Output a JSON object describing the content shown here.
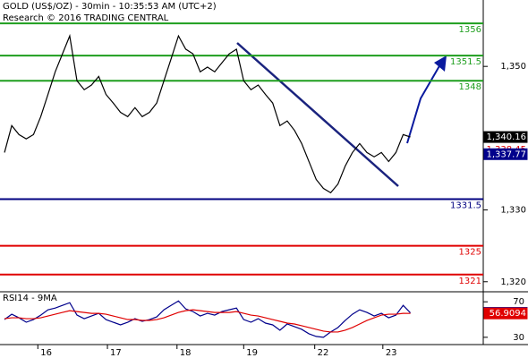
{
  "chart_data": [
    {
      "type": "line",
      "title": "GOLD (US$/OZ) - 30min - 10:35:53 AM (UTC+2)",
      "subtitle": "Research © 2016 TRADING CENTRAL",
      "x": [
        0,
        1,
        2,
        3,
        4,
        5,
        6,
        7,
        8,
        9,
        10,
        11,
        12,
        13,
        14,
        15,
        16,
        17,
        18,
        19,
        20,
        21,
        22,
        23,
        24,
        25,
        26,
        27,
        28,
        29,
        30,
        31,
        32,
        33,
        34,
        35,
        36,
        37,
        38,
        39,
        40,
        41,
        42,
        43,
        44,
        45,
        46,
        47,
        48,
        49,
        50,
        51,
        52,
        53,
        54,
        55,
        56
      ],
      "series": [
        {
          "color": "#000000",
          "values": [
            1338.0,
            1341.75,
            1340.5,
            1339.9,
            1340.5,
            1343.0,
            1346.1,
            1349.25,
            1351.75,
            1354.25,
            1348.0,
            1346.75,
            1347.4,
            1348.6,
            1346.1,
            1344.9,
            1343.6,
            1343.0,
            1344.25,
            1343.0,
            1343.6,
            1344.9,
            1348.0,
            1351.1,
            1354.25,
            1352.4,
            1351.75,
            1349.25,
            1349.9,
            1349.25,
            1350.5,
            1351.75,
            1352.4,
            1348.0,
            1346.75,
            1347.4,
            1346.1,
            1344.9,
            1341.75,
            1342.4,
            1341.1,
            1339.25,
            1336.75,
            1334.25,
            1333.0,
            1332.4,
            1333.6,
            1336.1,
            1338.0,
            1339.25,
            1338.0,
            1337.4,
            1338.0,
            1336.75,
            1338.0,
            1340.5,
            1340.16
          ]
        }
      ],
      "xlim": [
        -0.62,
        66.05
      ],
      "xticks": [
        {
          "value": 4.6,
          "label": "16"
        },
        {
          "value": 14.2,
          "label": "17"
        },
        {
          "value": 23.8,
          "label": "18"
        },
        {
          "value": 33.0,
          "label": "19"
        },
        {
          "value": 42.8,
          "label": "22"
        },
        {
          "value": 52.2,
          "label": "23"
        }
      ],
      "ylim": [
        1318.6,
        1359.25
      ],
      "yticks": [
        {
          "value": 1350,
          "label": "1,350"
        },
        {
          "value": 1330,
          "label": "1,330"
        },
        {
          "value": 1320,
          "label": "1,320"
        }
      ],
      "levels": [
        {
          "value": 1356,
          "color": "#1e9e1e"
        },
        {
          "value": 1351.5,
          "color": "#1e9e1e"
        },
        {
          "value": 1348,
          "color": "#1e9e1e"
        },
        {
          "value": 1331.5,
          "color": "#000080"
        },
        {
          "value": 1325,
          "color": "#e00000"
        },
        {
          "value": 1321,
          "color": "#e00000"
        }
      ],
      "price_tags": [
        {
          "value": 1340.16,
          "label": "1,340.16",
          "color": "#000000",
          "filled": true
        },
        {
          "value": 1338.45,
          "label": "1,338.45",
          "color": "#e00000",
          "filled": false
        },
        {
          "value": 1337.77,
          "label": "1,337.77",
          "color": "#00008b",
          "filled": true
        }
      ]
    },
    {
      "type": "line",
      "title": "RSI14 - 9MA",
      "series": [
        {
          "color": "#00008b",
          "values": [
            50,
            56,
            52,
            47,
            50,
            55,
            61,
            63,
            66,
            69,
            55,
            51,
            54,
            57,
            50,
            47,
            44,
            47,
            51,
            48,
            50,
            53,
            61,
            66,
            71,
            62,
            59,
            54,
            57,
            55,
            59,
            61,
            63,
            50,
            47,
            51,
            46,
            44,
            38,
            45,
            42,
            39,
            34,
            31,
            30,
            36,
            41,
            49,
            56,
            61,
            58,
            54,
            57,
            52,
            55,
            66,
            57.5142
          ]
        },
        {
          "color": "#e00000",
          "values": [
            51,
            52,
            52,
            51,
            51,
            52,
            54,
            56,
            58,
            60,
            59,
            58,
            57,
            57,
            56,
            54,
            52,
            50,
            50,
            49,
            49,
            50,
            52,
            55,
            58,
            60,
            61,
            60,
            59,
            58,
            58,
            58,
            59,
            57,
            55,
            54,
            52,
            50,
            48,
            46,
            45,
            43,
            41,
            39,
            37,
            36,
            36,
            38,
            41,
            45,
            49,
            52,
            55,
            56,
            56,
            57,
            56.9094
          ]
        }
      ],
      "ylim": [
        21.8,
        81.3
      ],
      "yticks": [
        70,
        30
      ],
      "price_tags": [
        {
          "value": 57.5142,
          "color": "#00008b",
          "filled": true
        },
        {
          "value": 56.9094,
          "color": "#e00000",
          "filled": true
        }
      ]
    }
  ]
}
